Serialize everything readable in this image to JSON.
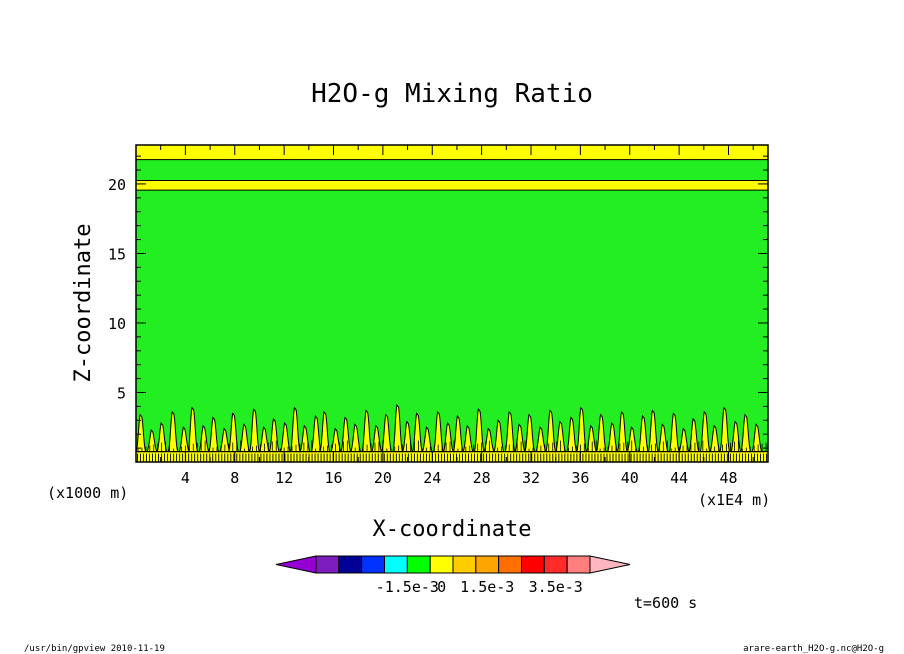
{
  "chart_data": {
    "type": "heatmap",
    "title": "H2O-g Mixing Ratio",
    "xlabel": "X-coordinate",
    "ylabel": "Z-coordinate",
    "x_unit_left": "(x1000 m)",
    "x_unit_right": "(x1E4 m)",
    "xlim": [
      0,
      51.2
    ],
    "ylim": [
      0,
      22.8
    ],
    "x_ticks": [
      4,
      8,
      12,
      16,
      20,
      24,
      28,
      32,
      36,
      40,
      44,
      48
    ],
    "y_ticks": [
      5,
      10,
      15,
      20
    ],
    "bands": [
      {
        "z0": 21.75,
        "z1": 22.8,
        "color": "yellow"
      },
      {
        "z0": 19.55,
        "z1": 20.25,
        "color": "yellow"
      },
      {
        "z0": 0,
        "z1": 0.75,
        "color": "yellow"
      }
    ],
    "field_color": "green",
    "plumes": [
      {
        "x": 0.4,
        "h": 3.4
      },
      {
        "x": 1.3,
        "h": 2.3
      },
      {
        "x": 2.1,
        "h": 2.8
      },
      {
        "x": 3.0,
        "h": 3.6
      },
      {
        "x": 3.9,
        "h": 2.5
      },
      {
        "x": 4.6,
        "h": 3.9
      },
      {
        "x": 5.5,
        "h": 2.6
      },
      {
        "x": 6.3,
        "h": 3.2
      },
      {
        "x": 7.2,
        "h": 2.4
      },
      {
        "x": 7.9,
        "h": 3.5
      },
      {
        "x": 8.8,
        "h": 2.7
      },
      {
        "x": 9.6,
        "h": 3.8
      },
      {
        "x": 10.4,
        "h": 2.5
      },
      {
        "x": 11.2,
        "h": 3.1
      },
      {
        "x": 12.1,
        "h": 2.8
      },
      {
        "x": 12.9,
        "h": 3.9
      },
      {
        "x": 13.7,
        "h": 2.6
      },
      {
        "x": 14.6,
        "h": 3.3
      },
      {
        "x": 15.3,
        "h": 3.6
      },
      {
        "x": 16.2,
        "h": 2.4
      },
      {
        "x": 17.0,
        "h": 3.2
      },
      {
        "x": 17.8,
        "h": 2.7
      },
      {
        "x": 18.7,
        "h": 3.7
      },
      {
        "x": 19.5,
        "h": 2.6
      },
      {
        "x": 20.3,
        "h": 3.4
      },
      {
        "x": 21.2,
        "h": 4.1
      },
      {
        "x": 22.0,
        "h": 2.9
      },
      {
        "x": 22.8,
        "h": 3.5
      },
      {
        "x": 23.6,
        "h": 2.5
      },
      {
        "x": 24.5,
        "h": 3.6
      },
      {
        "x": 25.3,
        "h": 2.8
      },
      {
        "x": 26.1,
        "h": 3.3
      },
      {
        "x": 26.9,
        "h": 2.6
      },
      {
        "x": 27.8,
        "h": 3.8
      },
      {
        "x": 28.6,
        "h": 2.4
      },
      {
        "x": 29.4,
        "h": 3.0
      },
      {
        "x": 30.3,
        "h": 3.6
      },
      {
        "x": 31.1,
        "h": 2.7
      },
      {
        "x": 31.9,
        "h": 3.4
      },
      {
        "x": 32.8,
        "h": 2.5
      },
      {
        "x": 33.6,
        "h": 3.7
      },
      {
        "x": 34.4,
        "h": 2.9
      },
      {
        "x": 35.3,
        "h": 3.2
      },
      {
        "x": 36.1,
        "h": 3.9
      },
      {
        "x": 36.9,
        "h": 2.6
      },
      {
        "x": 37.7,
        "h": 3.4
      },
      {
        "x": 38.6,
        "h": 2.8
      },
      {
        "x": 39.4,
        "h": 3.6
      },
      {
        "x": 40.2,
        "h": 2.5
      },
      {
        "x": 41.1,
        "h": 3.3
      },
      {
        "x": 41.9,
        "h": 3.7
      },
      {
        "x": 42.7,
        "h": 2.7
      },
      {
        "x": 43.6,
        "h": 3.5
      },
      {
        "x": 44.4,
        "h": 2.4
      },
      {
        "x": 45.2,
        "h": 3.1
      },
      {
        "x": 46.1,
        "h": 3.6
      },
      {
        "x": 46.9,
        "h": 2.6
      },
      {
        "x": 47.7,
        "h": 3.9
      },
      {
        "x": 48.6,
        "h": 2.9
      },
      {
        "x": 49.4,
        "h": 3.4
      },
      {
        "x": 50.3,
        "h": 2.7
      }
    ],
    "colorbar": {
      "colors": [
        "#9400d3",
        "#7e1dbe",
        "#000099",
        "#0033ff",
        "#00ffff",
        "#00ff00",
        "#ffff00",
        "#ffcc00",
        "#ffa500",
        "#ff7000",
        "#ff0000",
        "#ff2a2a",
        "#ff7f7f",
        "#ffb6c1"
      ],
      "labels": [
        {
          "text": "-1.5e-3",
          "index": 4
        },
        {
          "text": "0",
          "index": 5.5
        },
        {
          "text": "1.5e-3",
          "index": 7.5
        },
        {
          "text": "3.5e-3",
          "index": 10.5
        }
      ]
    },
    "time_label": "t=600 s",
    "footer_left": "/usr/bin/gpview  2010-11-19",
    "footer_right": "arare-earth_H2O-g.nc@H2O-g"
  },
  "colors": {
    "green": "#22ee22",
    "yellow": "#ffff00"
  }
}
